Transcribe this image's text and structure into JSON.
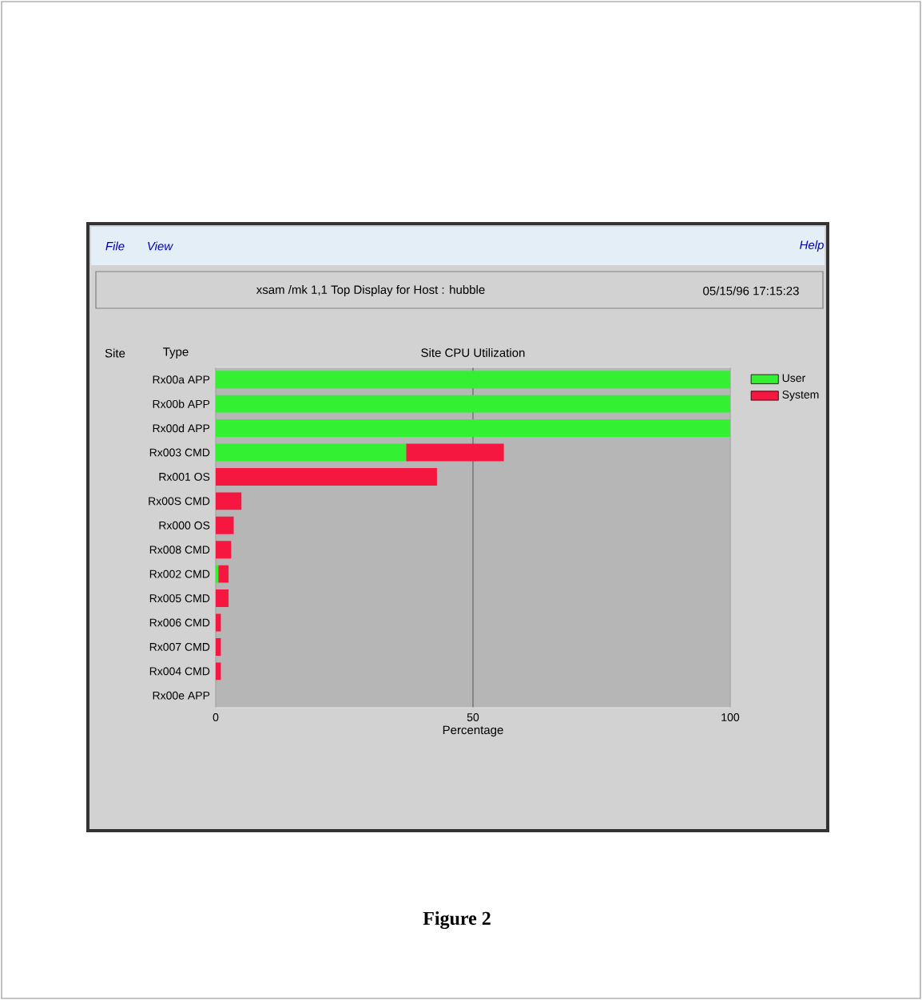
{
  "chart_data": {
    "type": "bar",
    "orientation": "horizontal",
    "stacked": true,
    "title": "Site CPU Utilization",
    "xlabel": "Percentage",
    "categories": [
      "Rx00a  APP",
      "Rx00b  APP",
      "Rx00d  APP",
      "Rx003  CMD",
      "Rx001  OS",
      "Rx00S  CMD",
      "Rx000  OS",
      "Rx008  CMD",
      "Rx002  CMD",
      "Rx005  CMD",
      "Rx006  CMD",
      "Rx007  CMD",
      "Rx004  CMD",
      "Rx00e  APP"
    ],
    "series": [
      {
        "name": "User",
        "color": "#33f033",
        "values": [
          100,
          100,
          100,
          37,
          0,
          0,
          0,
          0,
          0.5,
          0,
          0,
          0,
          0,
          0
        ]
      },
      {
        "name": "System",
        "color": "#f5173f",
        "values": [
          0,
          0,
          0,
          19,
          43,
          5,
          3.5,
          3,
          2,
          2.5,
          1,
          1,
          1,
          0
        ]
      }
    ],
    "xlim": [
      0,
      100
    ],
    "xticks": [
      0,
      50,
      100
    ],
    "grid": "x",
    "legend": "top right",
    "annotations": [
      "Site",
      "Type",
      "File",
      "View",
      "Help",
      "xsam /mk  1,1 Top Display for Host : hubble",
      "05/15/96 17:15:23",
      "Figure 2"
    ]
  }
}
